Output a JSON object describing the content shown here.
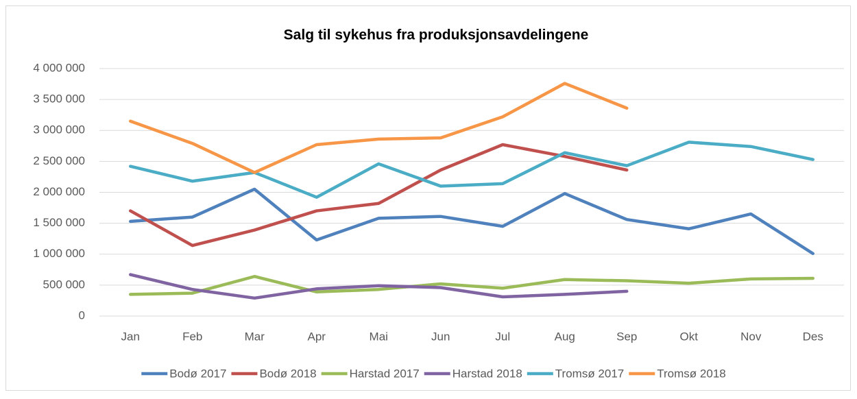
{
  "chart_data": {
    "type": "line",
    "title": "Salg til sykehus fra produksjonsavdelingene",
    "categories": [
      "Jan",
      "Feb",
      "Mar",
      "Apr",
      "Mai",
      "Jun",
      "Jul",
      "Aug",
      "Sep",
      "Okt",
      "Nov",
      "Des"
    ],
    "series": [
      {
        "name": "Bodø 2017",
        "color": "#4f81bd",
        "values": [
          1530000,
          1600000,
          2050000,
          1230000,
          1580000,
          1610000,
          1450000,
          1980000,
          1560000,
          1410000,
          1650000,
          1010000
        ]
      },
      {
        "name": "Bodø 2018",
        "color": "#c0504d",
        "values": [
          1700000,
          1140000,
          1390000,
          1700000,
          1820000,
          2360000,
          2770000,
          2580000,
          2360000,
          null,
          null,
          null
        ]
      },
      {
        "name": "Harstad 2017",
        "color": "#9bbb59",
        "values": [
          350000,
          370000,
          640000,
          390000,
          430000,
          520000,
          450000,
          590000,
          570000,
          530000,
          600000,
          610000
        ]
      },
      {
        "name": "Harstad 2018",
        "color": "#8064a2",
        "values": [
          670000,
          430000,
          290000,
          440000,
          490000,
          460000,
          310000,
          350000,
          400000,
          null,
          null,
          null
        ]
      },
      {
        "name": "Tromsø 2017",
        "color": "#4bacc6",
        "values": [
          2420000,
          2180000,
          2320000,
          1920000,
          2460000,
          2100000,
          2140000,
          2640000,
          2430000,
          2810000,
          2740000,
          2530000
        ]
      },
      {
        "name": "Tromsø 2018",
        "color": "#f79646",
        "values": [
          3150000,
          2790000,
          2320000,
          2770000,
          2860000,
          2880000,
          3220000,
          3760000,
          3360000,
          null,
          null,
          null
        ]
      }
    ],
    "ylim": [
      0,
      4000000
    ],
    "yticks": [
      0,
      {
        "value": 500000,
        "label": "500 000"
      },
      {
        "value": 1000000,
        "label": "1 000 000"
      },
      {
        "value": 1500000,
        "label": "1 500 000"
      },
      {
        "value": 2000000,
        "label": "2 000 000"
      },
      {
        "value": 2500000,
        "label": "2 500 000"
      },
      {
        "value": 3000000,
        "label": "3 000 000"
      },
      {
        "value": 3500000,
        "label": "3 500 000"
      },
      {
        "value": 4000000,
        "label": "4 000 000"
      }
    ],
    "grid": true,
    "legend": "bottom"
  }
}
